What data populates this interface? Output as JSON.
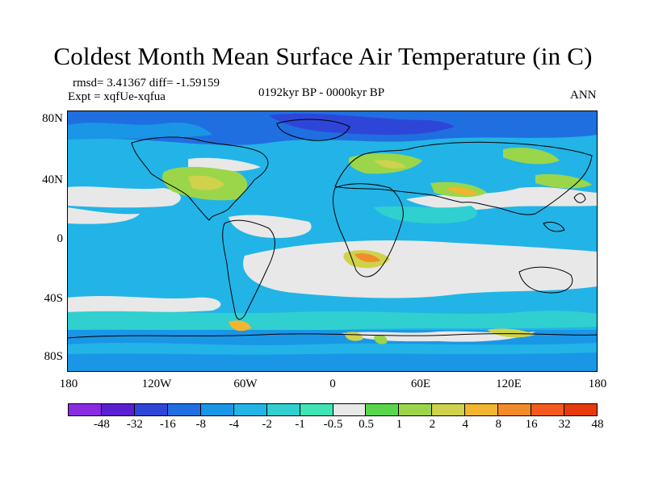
{
  "title": "Coldest Month Mean Surface Air Temperature (in C)",
  "stats": "rmsd= 3.41367 diff= -1.59159",
  "experiment": "Expt = xqfUe-xqfua",
  "period": "0192kyr BP - 0000kyr BP",
  "season": "ANN",
  "map_data": {
    "projection": "cylindrical equidistant",
    "lon_range": [
      -180,
      180
    ],
    "lat_range": [
      -90,
      90
    ],
    "y_ticks": [
      "80N",
      "40N",
      "0",
      "40S",
      "80S"
    ],
    "x_ticks": [
      "180",
      "120W",
      "60W",
      "0",
      "60E",
      "120E",
      "180"
    ],
    "colorbar": {
      "labels": [
        "-48",
        "-32",
        "-16",
        "-8",
        "-4",
        "-2",
        "-1",
        "-0.5",
        "0.5",
        "1",
        "2",
        "4",
        "8",
        "16",
        "32",
        "48"
      ],
      "colors": [
        "#8a2be2",
        "#5a1fd1",
        "#2e46d8",
        "#1f6fe0",
        "#1a96e6",
        "#22b4e6",
        "#2fd0cf",
        "#3fe3b4",
        "#e8e8e8",
        "#5ad64a",
        "#9bd64a",
        "#cfd24a",
        "#f2b530",
        "#f28c2a",
        "#f25a1f",
        "#e43a0c"
      ]
    }
  }
}
